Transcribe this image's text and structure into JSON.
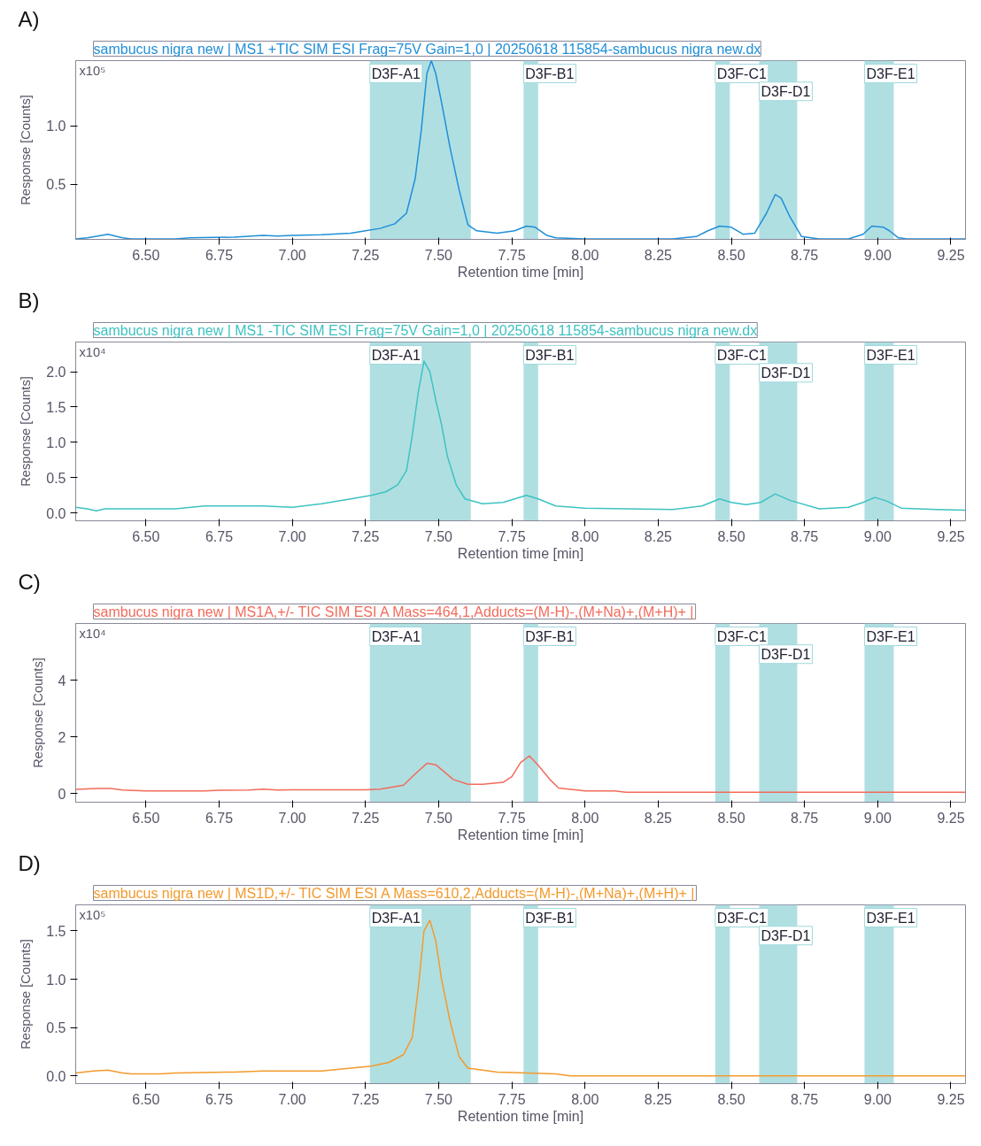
{
  "chart_data": [
    {
      "type": "line",
      "title": "A)",
      "subtitle": "sambucus nigra new | MS1 +TIC SIM ESI Frag=75V Gain=1,0 | 20250618 115854-sambucus nigra new.dx",
      "xlabel": "Retention time [min]",
      "ylabel": "Response [Counts]",
      "annotations": [
        "x10⁵"
      ],
      "x": [
        6.26,
        6.3,
        6.37,
        6.42,
        6.45,
        6.6,
        6.65,
        6.8,
        6.9,
        6.95,
        7.0,
        7.1,
        7.2,
        7.25,
        7.3,
        7.35,
        7.39,
        7.42,
        7.44,
        7.46,
        7.475,
        7.49,
        7.51,
        7.54,
        7.57,
        7.6,
        7.63,
        7.7,
        7.76,
        7.8,
        7.83,
        7.87,
        7.9,
        8.0,
        8.3,
        8.38,
        8.42,
        8.46,
        8.5,
        8.54,
        8.58,
        8.62,
        8.65,
        8.67,
        8.7,
        8.74,
        8.8,
        8.9,
        8.95,
        8.98,
        9.02,
        9.04,
        9.07,
        9.1,
        9.3
      ],
      "series": [
        {
          "color": "#1f8fd8",
          "values": [
            0.03,
            0.04,
            0.07,
            0.04,
            0.03,
            0.03,
            0.04,
            0.045,
            0.06,
            0.055,
            0.06,
            0.065,
            0.08,
            0.1,
            0.12,
            0.16,
            0.25,
            0.55,
            0.95,
            1.45,
            1.56,
            1.45,
            1.2,
            0.8,
            0.45,
            0.15,
            0.1,
            0.08,
            0.1,
            0.14,
            0.13,
            0.06,
            0.04,
            0.03,
            0.03,
            0.05,
            0.1,
            0.14,
            0.13,
            0.07,
            0.08,
            0.25,
            0.41,
            0.38,
            0.22,
            0.05,
            0.03,
            0.03,
            0.07,
            0.14,
            0.13,
            0.1,
            0.04,
            0.03,
            0.03
          ]
        }
      ],
      "xlim": [
        6.26,
        9.3
      ],
      "xticks": [
        {
          "value": 6.5,
          "label": "6.50"
        },
        {
          "value": 6.75,
          "label": "6.75"
        },
        {
          "value": 7.0,
          "label": "7.00"
        },
        {
          "value": 7.25,
          "label": "7.25"
        },
        {
          "value": 7.5,
          "label": "7.50"
        },
        {
          "value": 7.75,
          "label": "7.75"
        },
        {
          "value": 8.0,
          "label": "8.00"
        },
        {
          "value": 8.25,
          "label": "8.25"
        },
        {
          "value": 8.5,
          "label": "8.50"
        },
        {
          "value": 8.75,
          "label": "8.75"
        },
        {
          "value": 9.0,
          "label": "9.00"
        },
        {
          "value": 9.25,
          "label": "9.25"
        }
      ],
      "ylim": [
        0.026,
        1.56
      ],
      "yticks": [
        0.5,
        {
          "value": 1.0,
          "label": "1.0"
        }
      ],
      "bands": [
        {
          "axis": "x",
          "from": 7.265,
          "to": 7.61,
          "label": "D3F-A1",
          "color": "#b0dfe2"
        },
        {
          "axis": "x",
          "from": 7.79,
          "to": 7.84,
          "label": "D3F-B1",
          "color": "#b0dfe2"
        },
        {
          "axis": "x",
          "from": 8.445,
          "to": 8.495,
          "label": "D3F-C1",
          "color": "#b0dfe2"
        },
        {
          "axis": "x",
          "from": 8.595,
          "to": 8.725,
          "label": "D3F-D1",
          "color": "#b0dfe2"
        },
        {
          "axis": "x",
          "from": 8.955,
          "to": 9.055,
          "label": "D3F-E1",
          "color": "#b0dfe2"
        }
      ],
      "grid": false
    },
    {
      "type": "line",
      "title": "B)",
      "subtitle": "sambucus nigra new | MS1 -TIC SIM ESI Frag=75V Gain=1,0 | 20250618 115854-sambucus nigra new.dx",
      "xlabel": "Retention time [min]",
      "ylabel": "Response [Counts]",
      "annotations": [
        "x10⁴"
      ],
      "x": [
        6.26,
        6.3,
        6.33,
        6.36,
        6.6,
        6.7,
        6.9,
        7.0,
        7.1,
        7.2,
        7.27,
        7.32,
        7.36,
        7.39,
        7.41,
        7.43,
        7.45,
        7.47,
        7.49,
        7.51,
        7.53,
        7.56,
        7.59,
        7.65,
        7.72,
        7.8,
        7.84,
        7.9,
        8.0,
        8.3,
        8.4,
        8.46,
        8.5,
        8.55,
        8.6,
        8.65,
        8.7,
        8.8,
        8.9,
        8.95,
        8.99,
        9.03,
        9.08,
        9.2,
        9.3
      ],
      "series": [
        {
          "color": "#3ec2c2",
          "values": [
            0.08,
            0.06,
            0.03,
            0.06,
            0.06,
            0.1,
            0.1,
            0.08,
            0.13,
            0.2,
            0.25,
            0.3,
            0.4,
            0.6,
            1.1,
            1.7,
            2.15,
            2.0,
            1.6,
            1.25,
            0.8,
            0.4,
            0.2,
            0.13,
            0.15,
            0.25,
            0.2,
            0.1,
            0.07,
            0.05,
            0.1,
            0.2,
            0.15,
            0.12,
            0.15,
            0.27,
            0.18,
            0.06,
            0.08,
            0.15,
            0.22,
            0.17,
            0.07,
            0.05,
            0.04
          ]
        }
      ],
      "xlim": [
        6.26,
        9.3
      ],
      "xticks": [
        {
          "value": 6.5,
          "label": "6.50"
        },
        {
          "value": 6.75,
          "label": "6.75"
        },
        {
          "value": 7.0,
          "label": "7.00"
        },
        {
          "value": 7.25,
          "label": "7.25"
        },
        {
          "value": 7.5,
          "label": "7.50"
        },
        {
          "value": 7.75,
          "label": "7.75"
        },
        {
          "value": 8.0,
          "label": "8.00"
        },
        {
          "value": 8.25,
          "label": "8.25"
        },
        {
          "value": 8.5,
          "label": "8.50"
        },
        {
          "value": 8.75,
          "label": "8.75"
        },
        {
          "value": 9.0,
          "label": "9.00"
        },
        {
          "value": 9.25,
          "label": "9.25"
        }
      ],
      "ylim": [
        -0.11,
        2.42
      ],
      "yticks": [
        {
          "value": 0,
          "label": "0.0"
        },
        0.5,
        {
          "value": 1.0,
          "label": "1.0"
        },
        1.5,
        {
          "value": 2.0,
          "label": "2.0"
        }
      ],
      "bands": [
        {
          "axis": "x",
          "from": 7.265,
          "to": 7.61,
          "label": "D3F-A1",
          "color": "#b0dfe2"
        },
        {
          "axis": "x",
          "from": 7.79,
          "to": 7.84,
          "label": "D3F-B1",
          "color": "#b0dfe2"
        },
        {
          "axis": "x",
          "from": 8.445,
          "to": 8.495,
          "label": "D3F-C1",
          "color": "#b0dfe2"
        },
        {
          "axis": "x",
          "from": 8.595,
          "to": 8.725,
          "label": "D3F-D1",
          "color": "#b0dfe2"
        },
        {
          "axis": "x",
          "from": 8.955,
          "to": 9.055,
          "label": "D3F-E1",
          "color": "#b0dfe2"
        }
      ],
      "grid": false
    },
    {
      "type": "line",
      "title": "C)",
      "subtitle": "sambucus nigra new | MS1A,+/- TIC SIM ESI A Mass=464,1,Adducts=(M-H)-,(M+Na)+,(M+H)+ |",
      "xlabel": "Retention time [min]",
      "ylabel": "Response [Counts]",
      "annotations": [
        "x10⁴"
      ],
      "x": [
        6.26,
        6.33,
        6.38,
        6.42,
        6.5,
        6.7,
        6.75,
        6.85,
        6.9,
        6.95,
        7.0,
        7.25,
        7.3,
        7.38,
        7.42,
        7.46,
        7.49,
        7.51,
        7.55,
        7.6,
        7.65,
        7.72,
        7.75,
        7.78,
        7.81,
        7.84,
        7.88,
        7.91,
        8.0,
        8.1,
        8.14,
        8.3,
        9.3
      ],
      "series": [
        {
          "color": "#f26b5b",
          "values": [
            0.15,
            0.18,
            0.18,
            0.13,
            0.1,
            0.1,
            0.12,
            0.13,
            0.16,
            0.13,
            0.14,
            0.14,
            0.16,
            0.3,
            0.7,
            1.07,
            1.02,
            0.85,
            0.5,
            0.33,
            0.33,
            0.4,
            0.6,
            1.1,
            1.33,
            1.0,
            0.5,
            0.2,
            0.1,
            0.1,
            0.05,
            0.05,
            0.05
          ]
        }
      ],
      "xlim": [
        6.26,
        9.3
      ],
      "xticks": [
        {
          "value": 6.5,
          "label": "6.50"
        },
        {
          "value": 6.75,
          "label": "6.75"
        },
        {
          "value": 7.0,
          "label": "7.00"
        },
        {
          "value": 7.25,
          "label": "7.25"
        },
        {
          "value": 7.5,
          "label": "7.50"
        },
        {
          "value": 7.75,
          "label": "7.75"
        },
        {
          "value": 8.0,
          "label": "8.00"
        },
        {
          "value": 8.25,
          "label": "8.25"
        },
        {
          "value": 8.5,
          "label": "8.50"
        },
        {
          "value": 8.75,
          "label": "8.75"
        },
        {
          "value": 9.0,
          "label": "9.00"
        },
        {
          "value": 9.25,
          "label": "9.25"
        }
      ],
      "ylim": [
        -0.3,
        6.0
      ],
      "yticks": [
        0,
        2,
        4
      ],
      "bands": [
        {
          "axis": "x",
          "from": 7.265,
          "to": 7.61,
          "label": "D3F-A1",
          "color": "#b0dfe2"
        },
        {
          "axis": "x",
          "from": 7.79,
          "to": 7.84,
          "label": "D3F-B1",
          "color": "#b0dfe2"
        },
        {
          "axis": "x",
          "from": 8.445,
          "to": 8.495,
          "label": "D3F-C1",
          "color": "#b0dfe2"
        },
        {
          "axis": "x",
          "from": 8.595,
          "to": 8.725,
          "label": "D3F-D1",
          "color": "#b0dfe2"
        },
        {
          "axis": "x",
          "from": 8.955,
          "to": 9.055,
          "label": "D3F-E1",
          "color": "#b0dfe2"
        }
      ],
      "grid": false
    },
    {
      "type": "line",
      "title": "D)",
      "subtitle": "sambucus nigra new | MS1D,+/- TIC SIM ESI A Mass=610,2,Adducts=(M-H)-,(M+Na)+,(M+H)+ |",
      "xlabel": "Retention time [min]",
      "ylabel": "Response [Counts]",
      "annotations": [
        "x10⁵"
      ],
      "x": [
        6.26,
        6.32,
        6.37,
        6.42,
        6.45,
        6.55,
        6.6,
        6.8,
        6.9,
        7.1,
        7.2,
        7.27,
        7.33,
        7.38,
        7.41,
        7.43,
        7.45,
        7.47,
        7.49,
        7.51,
        7.54,
        7.57,
        7.6,
        7.7,
        7.8,
        7.9,
        7.95,
        9.3
      ],
      "series": [
        {
          "color": "#f39a2c",
          "values": [
            0.03,
            0.05,
            0.06,
            0.03,
            0.02,
            0.02,
            0.03,
            0.04,
            0.05,
            0.05,
            0.08,
            0.1,
            0.14,
            0.22,
            0.4,
            0.9,
            1.5,
            1.61,
            1.4,
            1.0,
            0.55,
            0.2,
            0.08,
            0.04,
            0.03,
            0.02,
            0.0,
            0.0
          ]
        }
      ],
      "xlim": [
        6.26,
        9.3
      ],
      "xticks": [
        {
          "value": 6.5,
          "label": "6.50"
        },
        {
          "value": 6.75,
          "label": "6.75"
        },
        {
          "value": 7.0,
          "label": "7.00"
        },
        {
          "value": 7.25,
          "label": "7.25"
        },
        {
          "value": 7.5,
          "label": "7.50"
        },
        {
          "value": 7.75,
          "label": "7.75"
        },
        {
          "value": 8.0,
          "label": "8.00"
        },
        {
          "value": 8.25,
          "label": "8.25"
        },
        {
          "value": 8.5,
          "label": "8.50"
        },
        {
          "value": 8.75,
          "label": "8.75"
        },
        {
          "value": 9.0,
          "label": "9.00"
        },
        {
          "value": 9.25,
          "label": "9.25"
        }
      ],
      "ylim": [
        -0.08,
        1.77
      ],
      "yticks": [
        {
          "value": 0,
          "label": "0.0"
        },
        0.5,
        {
          "value": 1.0,
          "label": "1.0"
        },
        1.5
      ],
      "bands": [
        {
          "axis": "x",
          "from": 7.265,
          "to": 7.61,
          "label": "D3F-A1",
          "color": "#b0dfe2"
        },
        {
          "axis": "x",
          "from": 7.79,
          "to": 7.84,
          "label": "D3F-B1",
          "color": "#b0dfe2"
        },
        {
          "axis": "x",
          "from": 8.445,
          "to": 8.495,
          "label": "D3F-C1",
          "color": "#b0dfe2"
        },
        {
          "axis": "x",
          "from": 8.595,
          "to": 8.725,
          "label": "D3F-D1",
          "color": "#b0dfe2"
        },
        {
          "axis": "x",
          "from": 8.955,
          "to": 9.055,
          "label": "D3F-E1",
          "color": "#b0dfe2"
        }
      ],
      "grid": false
    }
  ]
}
